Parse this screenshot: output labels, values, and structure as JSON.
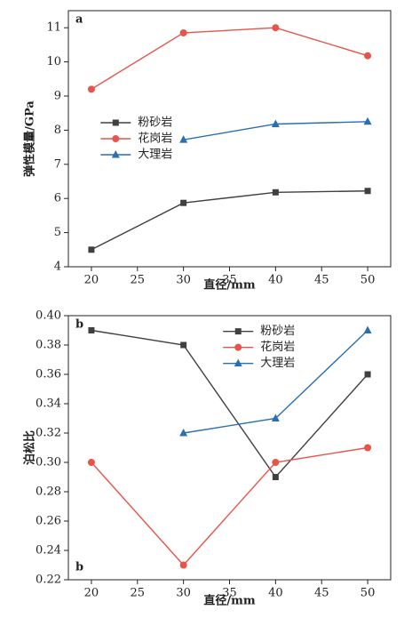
{
  "chart_data": [
    {
      "type": "line",
      "annotation": "a",
      "xlabel": "直径/mm",
      "ylabel": "弹性模量/GPa",
      "x": [
        20,
        30,
        40,
        50
      ],
      "xlim": [
        17.5,
        52.5
      ],
      "xticks": [
        20,
        25,
        30,
        35,
        40,
        45,
        50
      ],
      "ylim": [
        4,
        11.5
      ],
      "yticks": [
        4,
        5,
        6,
        7,
        8,
        9,
        10,
        11
      ],
      "legend": "center left",
      "series": [
        {
          "name": "粉砂岩",
          "color": "#404040",
          "marker": "square",
          "values": [
            4.5,
            5.87,
            6.18,
            6.22
          ]
        },
        {
          "name": "花岗岩",
          "color": "#e8534a",
          "marker": "circle",
          "values": [
            9.2,
            10.85,
            11.0,
            10.18
          ]
        },
        {
          "name": "大理岩",
          "color": "#2a6fb0",
          "marker": "triangle",
          "values": [
            null,
            7.72,
            8.18,
            8.25
          ]
        }
      ]
    },
    {
      "type": "line",
      "annotation": "b",
      "annotation2": "b",
      "xlabel": "直径/mm",
      "ylabel": "泊松比",
      "x": [
        20,
        30,
        40,
        50
      ],
      "xlim": [
        17.5,
        52.5
      ],
      "xticks": [
        20,
        25,
        30,
        35,
        40,
        45,
        50
      ],
      "ylim": [
        0.22,
        0.4
      ],
      "yticks": [
        0.22,
        0.24,
        0.26,
        0.28,
        {
          "value": 0.3,
          "label": "0.30"
        },
        0.32,
        0.34,
        0.36,
        0.38,
        {
          "value": 0.4,
          "label": "0.40"
        }
      ],
      "legend": "upper center",
      "series": [
        {
          "name": "粉砂岩",
          "color": "#404040",
          "marker": "square",
          "values": [
            0.39,
            0.38,
            0.29,
            0.36
          ]
        },
        {
          "name": "花岗岩",
          "color": "#e8534a",
          "marker": "circle",
          "values": [
            0.3,
            0.23,
            0.3,
            0.31
          ]
        },
        {
          "name": "大理岩",
          "color": "#2a6fb0",
          "marker": "triangle",
          "values": [
            null,
            0.32,
            0.33,
            0.39
          ]
        }
      ]
    }
  ]
}
